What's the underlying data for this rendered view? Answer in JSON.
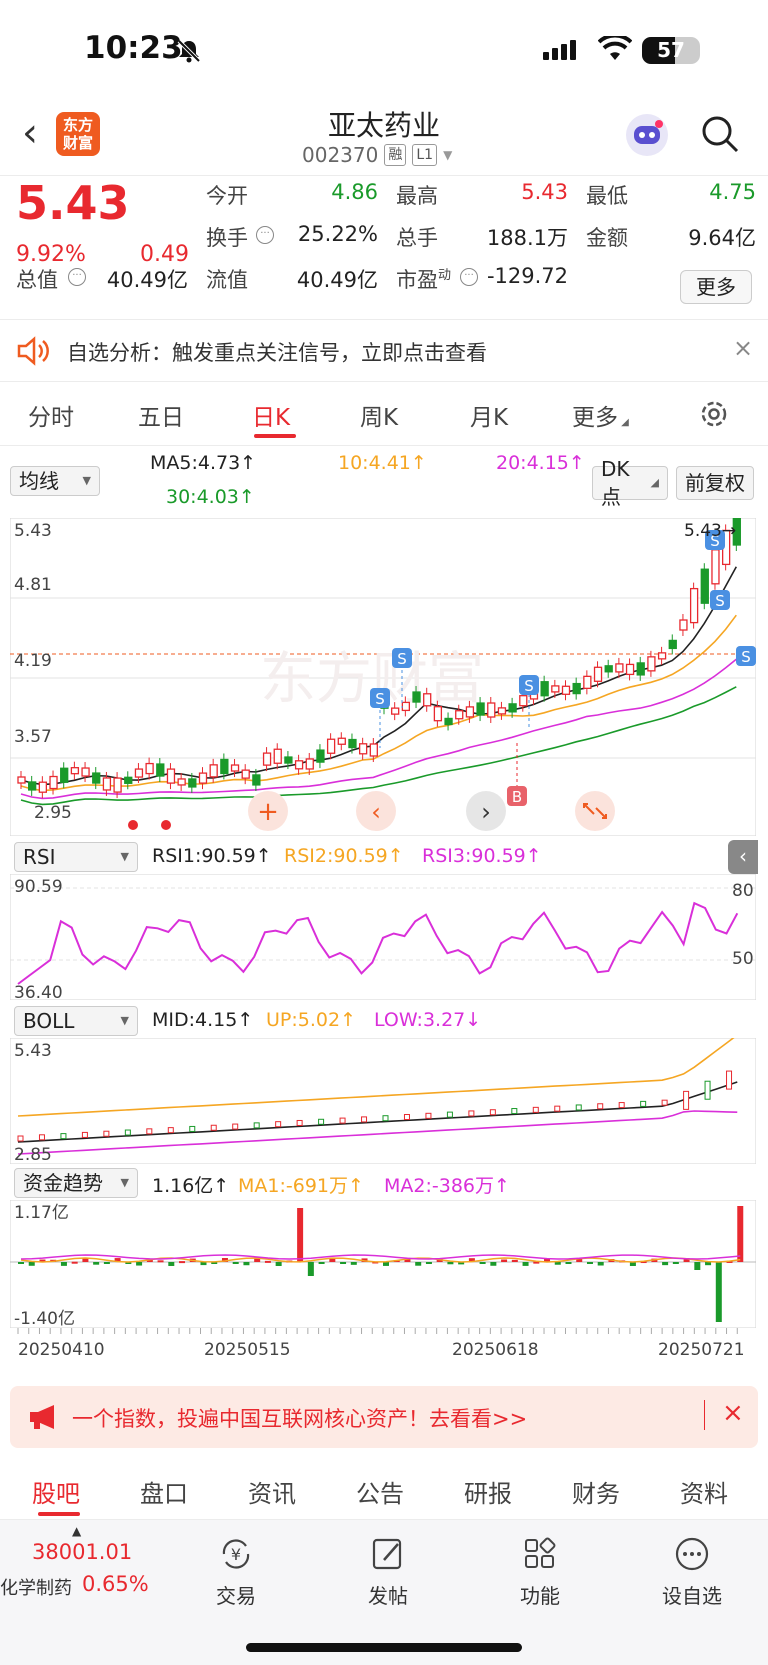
{
  "status_bar": {
    "time": "10:23",
    "battery": "57"
  },
  "header": {
    "back": "‹",
    "logo_line1": "东方",
    "logo_line2": "财富",
    "title": "亚太药业",
    "code": "002370",
    "tag1": "融",
    "tag2": "L1"
  },
  "quote": {
    "price": "5.43",
    "change_pct": "9.92%",
    "change": "0.49",
    "open_label": "今开",
    "open": "4.86",
    "high_label": "最高",
    "high": "5.43",
    "low_label": "最低",
    "low": "4.75",
    "turnover_label": "换手",
    "turnover": "25.22%",
    "volume_label": "总手",
    "volume": "188.1万",
    "amount_label": "金额",
    "amount": "9.64亿",
    "mcap_label": "总值",
    "mcap": "40.49亿",
    "float_label": "流值",
    "float": "40.49亿",
    "pe_label": "市盈",
    "pe_sup": "动",
    "pe": "-129.72",
    "more_button": "更多"
  },
  "notice": {
    "text": "自选分析：触发重点关注信号，立即点击查看",
    "close": "×"
  },
  "tabs": [
    "分时",
    "五日",
    "日K",
    "周K",
    "月K",
    "更多"
  ],
  "active_tab": "日K",
  "kline": {
    "selector": "均线",
    "ma5": "MA5:4.73↑",
    "ma10": "10:4.41↑",
    "ma20": "20:4.15↑",
    "ma30": "30:4.03↑",
    "dk_button": "DK点",
    "adjust_button": "前复权",
    "y_labels": [
      "5.43",
      "4.81",
      "4.19",
      "3.57",
      "2.95"
    ],
    "last_price_tag": "5.43→",
    "signal_s": "S",
    "signal_b": "B"
  },
  "rsi": {
    "selector": "RSI",
    "rsi1": "RSI1:90.59↑",
    "rsi2": "RSI2:90.59↑",
    "rsi3": "RSI3:90.59↑",
    "top": "90.59",
    "bottom": "36.40",
    "level80": "80",
    "level50": "50"
  },
  "boll": {
    "selector": "BOLL",
    "mid": "MID:4.15↑",
    "up": "UP:5.02↑",
    "low": "LOW:3.27↓",
    "top": "5.43",
    "bottom": "2.85"
  },
  "fund": {
    "selector": "资金趋势",
    "value": "1.16亿↑",
    "ma1": "MA1:-691万↑",
    "ma2": "MA2:-386万↑",
    "top": "1.17亿",
    "bottom": "-1.40亿"
  },
  "x_labels": [
    "20250410",
    "20250515",
    "20250618",
    "20250721"
  ],
  "promo": {
    "text": "一个指数，投遍中国互联网核心资产！去看看>>",
    "close": "×"
  },
  "bottom_tabs": [
    "股吧",
    "盘口",
    "资讯",
    "公告",
    "研报",
    "财务",
    "资料"
  ],
  "active_bottom_tab": "股吧",
  "index": {
    "value": "38001.01",
    "name": "化学制药",
    "pct": "0.65%"
  },
  "toolbar": {
    "trade": "交易",
    "post": "发帖",
    "function": "功能",
    "watch": "设自选"
  },
  "colors": {
    "up": "#e8292f",
    "down": "#1a9a2a",
    "ma10": "#f5a623",
    "ma20": "#d92fd9"
  }
}
